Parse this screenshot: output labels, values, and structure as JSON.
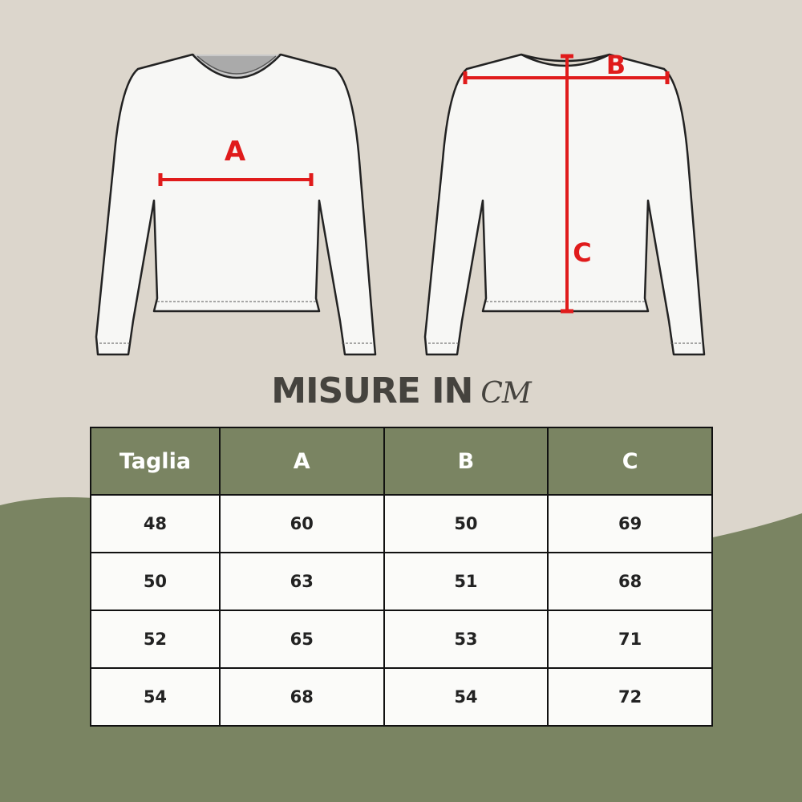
{
  "colors": {
    "background": "#dcd6cc",
    "accent_green": "#7a8462",
    "measure_red": "#e01b1b",
    "title": "#45433e"
  },
  "diagram": {
    "front_label_a": "A",
    "back_label_b": "B",
    "back_label_c": "C"
  },
  "title": {
    "main": "MISURE IN",
    "unit": "CM"
  },
  "table": {
    "headers": [
      "Taglia",
      "A",
      "B",
      "C"
    ],
    "rows": [
      [
        "48",
        "60",
        "50",
        "69"
      ],
      [
        "50",
        "63",
        "51",
        "68"
      ],
      [
        "52",
        "65",
        "53",
        "71"
      ],
      [
        "54",
        "68",
        "54",
        "72"
      ]
    ]
  }
}
